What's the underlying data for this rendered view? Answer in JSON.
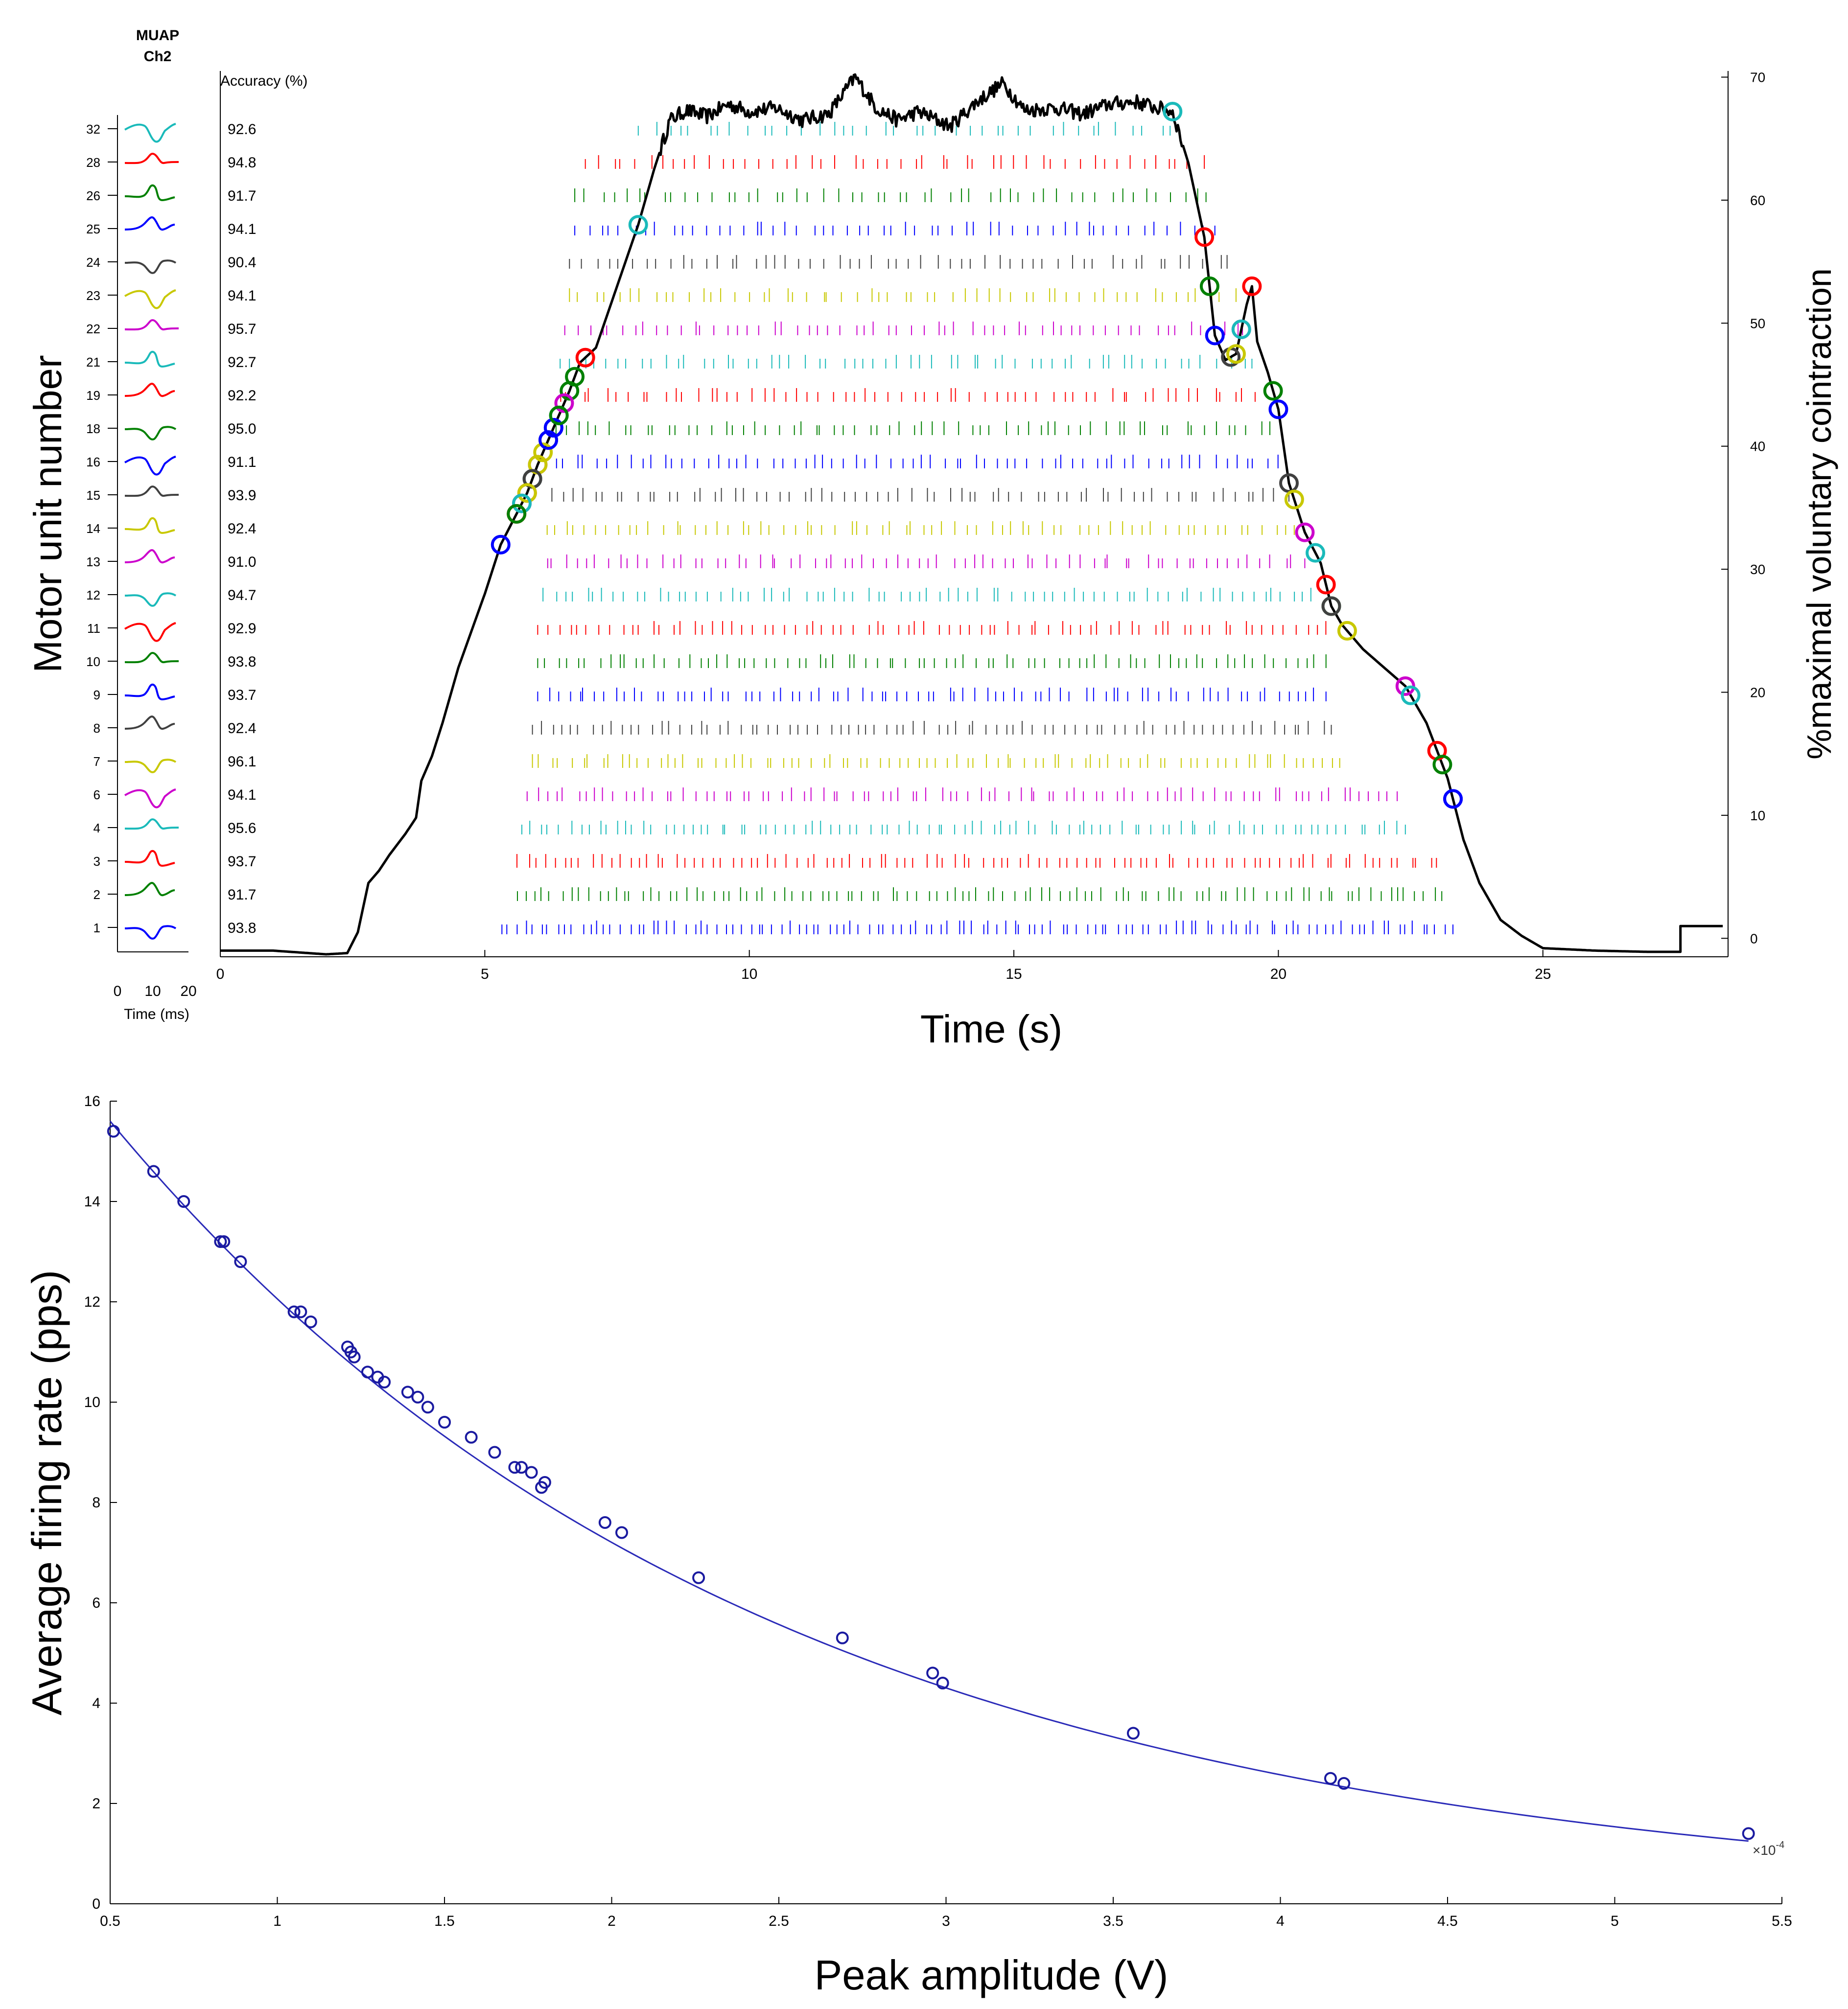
{
  "chart_data": [
    {
      "type": "line",
      "muap_header": [
        "MUAP",
        "Ch2"
      ],
      "accuracy_header": "Accuracy (%)",
      "muap_time_label": "Time (ms)",
      "muap_time_ticks": [
        "0",
        "10",
        "20"
      ],
      "xlabel": "Time (s)",
      "ylabel": "Motor unit number",
      "y2label": "%maximal voluntary cointraction",
      "xlim": [
        0,
        28.5
      ],
      "ylim": [
        -1.5,
        70.5
      ],
      "x_ticks": [
        0,
        5,
        10,
        15,
        20,
        25
      ],
      "y2_ticks": [
        0,
        10,
        20,
        30,
        40,
        50,
        60,
        70
      ],
      "force_trace": {
        "name": "force",
        "color": "#000000",
        "x": [
          0,
          1.0,
          2.0,
          2.4,
          2.6,
          2.8,
          3.0,
          3.2,
          3.5,
          3.7,
          3.8,
          4.0,
          4.2,
          4.5,
          5.0,
          5.3,
          5.6,
          5.8,
          6.0,
          6.2,
          6.4,
          6.6,
          6.8,
          7.1,
          7.5,
          7.9,
          8.2,
          8.5,
          8.8,
          9.2,
          9.6,
          10.0,
          10.5,
          11.0,
          11.5,
          12.0,
          12.4,
          12.8,
          13.2,
          13.8,
          14.3,
          14.8,
          15.2,
          15.8,
          16.3,
          16.8,
          17.3,
          17.7,
          18.0,
          18.3,
          18.6,
          18.8,
          19.0,
          19.2,
          19.4,
          19.5,
          19.6,
          19.8,
          20.0,
          20.2,
          20.5,
          20.8,
          21.0,
          21.2,
          21.6,
          22.0,
          22.4,
          22.8,
          23.2,
          23.5,
          23.8,
          24.2,
          24.6,
          25.0,
          26.0,
          27.0,
          27.6,
          27.6,
          28.4
        ],
        "y": [
          -1,
          -1,
          -1.3,
          -1.2,
          0.5,
          4.5,
          5.5,
          6.8,
          8.5,
          9.8,
          12.8,
          14.8,
          17.5,
          22.0,
          28.0,
          32.0,
          34.5,
          36.2,
          38.5,
          40.5,
          42.5,
          44.5,
          46.8,
          48.0,
          53.0,
          58.0,
          62.5,
          66.5,
          67.3,
          66.8,
          67.8,
          67.2,
          67.5,
          66.5,
          67.0,
          70.0,
          67.5,
          66.5,
          67.2,
          66.0,
          68.0,
          69.5,
          67.3,
          67.5,
          67.0,
          67.8,
          68.0,
          67.5,
          67.2,
          63.0,
          57.0,
          49.0,
          47.0,
          47.5,
          51.5,
          53.0,
          48.5,
          46.0,
          43.0,
          37.0,
          33.0,
          30.5,
          27.0,
          25.5,
          23.5,
          22.0,
          20.5,
          17.5,
          13.0,
          8.0,
          4.5,
          1.5,
          0.2,
          -0.8,
          -1.0,
          -1.1,
          -1.1,
          1.0,
          1.0
        ]
      },
      "motor_units": [
        {
          "unit": "32",
          "accuracy": "92.6",
          "color": "#1ababa",
          "start": 7.9,
          "end": 18.0,
          "spikes": 40,
          "circle_on": 7.9,
          "circle_off": 18.0
        },
        {
          "unit": "28",
          "accuracy": "94.8",
          "color": "#ff0000",
          "start": 6.9,
          "end": 18.6,
          "spikes": 50,
          "circle_on": 6.9,
          "circle_off": 18.6
        },
        {
          "unit": "26",
          "accuracy": "91.7",
          "color": "#008000",
          "start": 6.7,
          "end": 18.7,
          "spikes": 52,
          "circle_on": 6.7,
          "circle_off": 18.7
        },
        {
          "unit": "25",
          "accuracy": "94.1",
          "color": "#0000ff",
          "start": 6.7,
          "end": 18.8,
          "spikes": 55,
          "circle_on": 6.3,
          "circle_off": 18.8
        },
        {
          "unit": "24",
          "accuracy": "90.4",
          "color": "#404040",
          "start": 6.6,
          "end": 19.1,
          "spikes": 55,
          "circle_on": 6.2,
          "circle_off": 19.1
        },
        {
          "unit": "23",
          "accuracy": "94.1",
          "color": "#c8c800",
          "start": 6.6,
          "end": 19.2,
          "spikes": 57,
          "circle_on": 6.1,
          "circle_off": 19.2
        },
        {
          "unit": "22",
          "accuracy": "95.7",
          "color": "#cc00cc",
          "start": 6.5,
          "end": 19.4,
          "spikes": 60,
          "circle_on": 6.0,
          "circle_off": 19.3
        },
        {
          "unit": "21",
          "accuracy": "92.7",
          "color": "#1ababa",
          "start": 6.4,
          "end": 19.5,
          "spikes": 60,
          "circle_on": 5.9,
          "circle_off": 19.3
        },
        {
          "unit": "19",
          "accuracy": "92.2",
          "color": "#ff0000",
          "start": 6.4,
          "end": 19.6,
          "spikes": 62,
          "circle_on": 5.8,
          "circle_off": 19.5
        },
        {
          "unit": "18",
          "accuracy": "95.0",
          "color": "#008000",
          "start": 6.3,
          "end": 19.9,
          "spikes": 65,
          "circle_on": 6.6,
          "circle_off": 19.9
        },
        {
          "unit": "16",
          "accuracy": "91.1",
          "color": "#0000ff",
          "start": 6.3,
          "end": 20.0,
          "spikes": 68,
          "circle_on": 6.3,
          "circle_off": 20.0
        },
        {
          "unit": "15",
          "accuracy": "93.9",
          "color": "#404040",
          "start": 6.2,
          "end": 20.2,
          "spikes": 68,
          "circle_on": 5.9,
          "circle_off": 20.2
        },
        {
          "unit": "14",
          "accuracy": "92.4",
          "color": "#c8c800",
          "start": 6.1,
          "end": 20.3,
          "spikes": 70,
          "circle_on": 6.0,
          "circle_off": 20.3
        },
        {
          "unit": "13",
          "accuracy": "91.0",
          "color": "#cc00cc",
          "start": 6.1,
          "end": 20.5,
          "spikes": 72,
          "circle_on": 6.5,
          "circle_off": 20.5
        },
        {
          "unit": "12",
          "accuracy": "94.7",
          "color": "#1ababa",
          "start": 6.1,
          "end": 20.7,
          "spikes": 75,
          "circle_on": 6.4,
          "circle_off": 20.7
        },
        {
          "unit": "11",
          "accuracy": "92.9",
          "color": "#ff0000",
          "start": 6.0,
          "end": 20.9,
          "spikes": 78,
          "circle_on": 5.6,
          "circle_off": 20.9
        },
        {
          "unit": "10",
          "accuracy": "93.8",
          "color": "#008000",
          "start": 6.0,
          "end": 20.9,
          "spikes": 80,
          "circle_on": 6.4,
          "circle_off": 21.0
        },
        {
          "unit": "9",
          "accuracy": "93.7",
          "color": "#0000ff",
          "start": 6.0,
          "end": 20.9,
          "spikes": 82,
          "circle_on": 6.2,
          "circle_off": 23.3
        },
        {
          "unit": "8",
          "accuracy": "92.4",
          "color": "#404040",
          "start": 5.9,
          "end": 21.0,
          "spikes": 82,
          "circle_on": 5.9,
          "circle_off": 21.0
        },
        {
          "unit": "7",
          "accuracy": "96.1",
          "color": "#c8c800",
          "start": 5.9,
          "end": 21.2,
          "spikes": 85,
          "circle_on": 5.8,
          "circle_off": 21.3
        },
        {
          "unit": "6",
          "accuracy": "94.1",
          "color": "#cc00cc",
          "start": 5.8,
          "end": 22.3,
          "spikes": 90,
          "circle_on": 5.7,
          "circle_off": 22.4
        },
        {
          "unit": "4",
          "accuracy": "95.6",
          "color": "#1ababa",
          "start": 5.7,
          "end": 22.4,
          "spikes": 95,
          "circle_on": 5.7,
          "circle_off": 22.5
        },
        {
          "unit": "3",
          "accuracy": "93.7",
          "color": "#ff0000",
          "start": 5.6,
          "end": 23.0,
          "spikes": 100,
          "circle_on": 5.6,
          "circle_off": 23.0
        },
        {
          "unit": "2",
          "accuracy": "91.7",
          "color": "#008000",
          "start": 5.6,
          "end": 23.1,
          "spikes": 105,
          "circle_on": 5.6,
          "circle_off": 23.1
        },
        {
          "unit": "1",
          "accuracy": "93.8",
          "color": "#0000ff",
          "start": 5.3,
          "end": 23.3,
          "spikes": 120,
          "circle_on": 5.3,
          "circle_off": 23.3
        }
      ]
    },
    {
      "type": "scatter",
      "xlabel": "Peak amplitude (V)",
      "ylabel": "Average firing rate (pps)",
      "x_exponent_label": "×10",
      "x_exponent_power": "-4",
      "xlim": [
        0.5,
        5.5
      ],
      "ylim": [
        0,
        16
      ],
      "x_ticks": [
        "0.5",
        "1",
        "1.5",
        "2",
        "2.5",
        "3",
        "3.5",
        "4",
        "4.5",
        "5",
        "5.5"
      ],
      "y_ticks": [
        "0",
        "2",
        "4",
        "6",
        "8",
        "10",
        "12",
        "14",
        "16"
      ],
      "marker_color": "#1a1aa0",
      "fit_color": "#2a2ab8",
      "x": [
        0.51,
        0.63,
        0.72,
        0.83,
        0.84,
        0.89,
        1.05,
        1.07,
        1.1,
        1.21,
        1.22,
        1.23,
        1.27,
        1.3,
        1.32,
        1.39,
        1.42,
        1.45,
        1.5,
        1.58,
        1.65,
        1.71,
        1.73,
        1.76,
        1.79,
        1.8,
        1.98,
        2.03,
        2.26,
        2.69,
        2.96,
        2.99,
        3.56,
        4.15,
        4.19,
        5.4
      ],
      "y": [
        15.4,
        14.6,
        14.0,
        13.2,
        13.2,
        12.8,
        11.8,
        11.8,
        11.6,
        11.1,
        11.0,
        10.9,
        10.6,
        10.5,
        10.4,
        10.2,
        10.1,
        9.9,
        9.6,
        9.3,
        9.0,
        8.7,
        8.7,
        8.6,
        8.3,
        8.4,
        7.6,
        7.4,
        6.5,
        5.3,
        4.6,
        4.4,
        3.4,
        2.5,
        2.4,
        1.4
      ],
      "fit": {
        "x_start": 0.5,
        "x_end": 5.4,
        "y_start": 15.6,
        "y_end": 1.25
      }
    }
  ]
}
